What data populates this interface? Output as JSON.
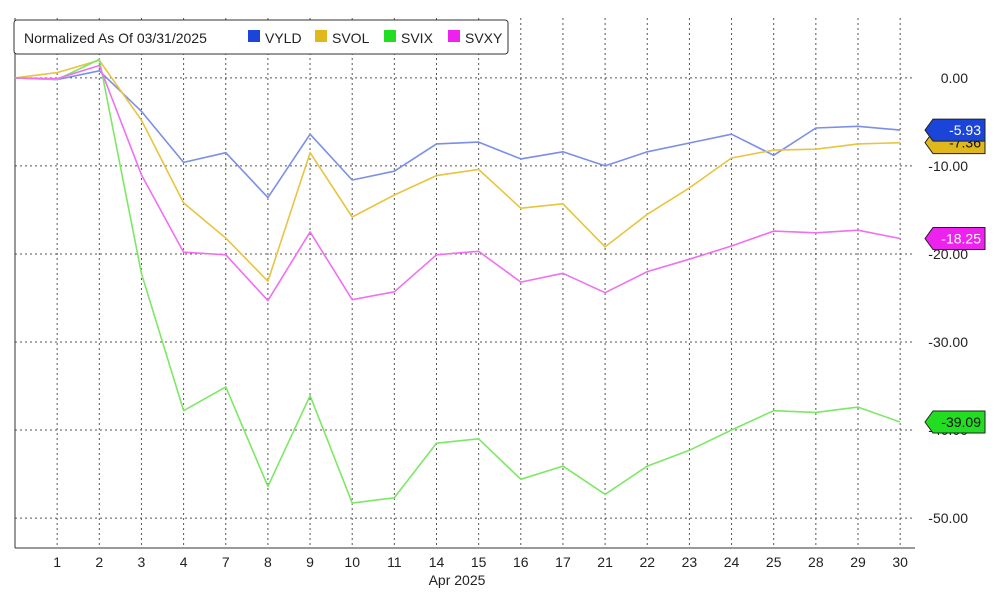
{
  "chart_data": {
    "type": "line",
    "legend_title": "Normalized As Of 03/31/2025",
    "legend_position": "top-left",
    "x_month_label": "Apr 2025",
    "categories": [
      "",
      "1",
      "2",
      "3",
      "4",
      "7",
      "8",
      "9",
      "10",
      "11",
      "14",
      "15",
      "16",
      "17",
      "21",
      "22",
      "23",
      "24",
      "25",
      "28",
      "29",
      "30"
    ],
    "y_ticks": [
      "0.00",
      "-10.00",
      "-20.00",
      "-30.00",
      "-40.00",
      "-50.00"
    ],
    "ylim": [
      -53.4,
      6.8
    ],
    "grid": true,
    "series": [
      {
        "name": "VYLD",
        "color": "#7b8fe6",
        "legend_color": "#1a45d8",
        "tag_color": "#1a45d8",
        "tag_text_color": "#ffffff",
        "last_label": "-5.93",
        "values": [
          0,
          -0.2,
          0.8,
          -3.8,
          -9.6,
          -8.5,
          -13.6,
          -6.4,
          -11.6,
          -10.6,
          -7.5,
          -7.3,
          -9.2,
          -8.4,
          -10.0,
          -8.4,
          -7.4,
          -6.4,
          -8.8,
          -5.7,
          -5.5,
          -5.93
        ]
      },
      {
        "name": "SVOL",
        "color": "#e8c440",
        "legend_color": "#e0b81c",
        "tag_color": "#e0b81c",
        "tag_text_color": "#111111",
        "last_label": "-7.36",
        "values": [
          0,
          0.6,
          2.0,
          -4.8,
          -14.2,
          -18.2,
          -23.1,
          -8.5,
          -15.8,
          -13.3,
          -11.1,
          -10.4,
          -14.8,
          -14.3,
          -19.2,
          -15.5,
          -12.5,
          -9.1,
          -8.2,
          -8.1,
          -7.5,
          -7.36
        ]
      },
      {
        "name": "SVIX",
        "color": "#7de866",
        "legend_color": "#22dd22",
        "tag_color": "#22dd22",
        "tag_text_color": "#111111",
        "last_label": "-39.09",
        "values": [
          0,
          -0.2,
          2.1,
          -22.2,
          -37.8,
          -35.1,
          -46.4,
          -36.1,
          -48.3,
          -47.7,
          -41.5,
          -41.0,
          -45.6,
          -44.1,
          -47.3,
          -44.1,
          -42.3,
          -40.0,
          -37.8,
          -38.0,
          -37.4,
          -39.09
        ]
      },
      {
        "name": "SVXY",
        "color": "#f070f0",
        "legend_color": "#ee22ee",
        "tag_color": "#ee22ee",
        "tag_text_color": "#ffffff",
        "last_label": "-18.25",
        "values": [
          0,
          -0.1,
          1.4,
          -11.0,
          -19.8,
          -20.1,
          -25.3,
          -17.5,
          -25.2,
          -24.3,
          -20.1,
          -19.7,
          -23.2,
          -22.2,
          -24.4,
          -22.0,
          -20.6,
          -19.1,
          -17.4,
          -17.6,
          -17.3,
          -18.25
        ]
      }
    ]
  }
}
